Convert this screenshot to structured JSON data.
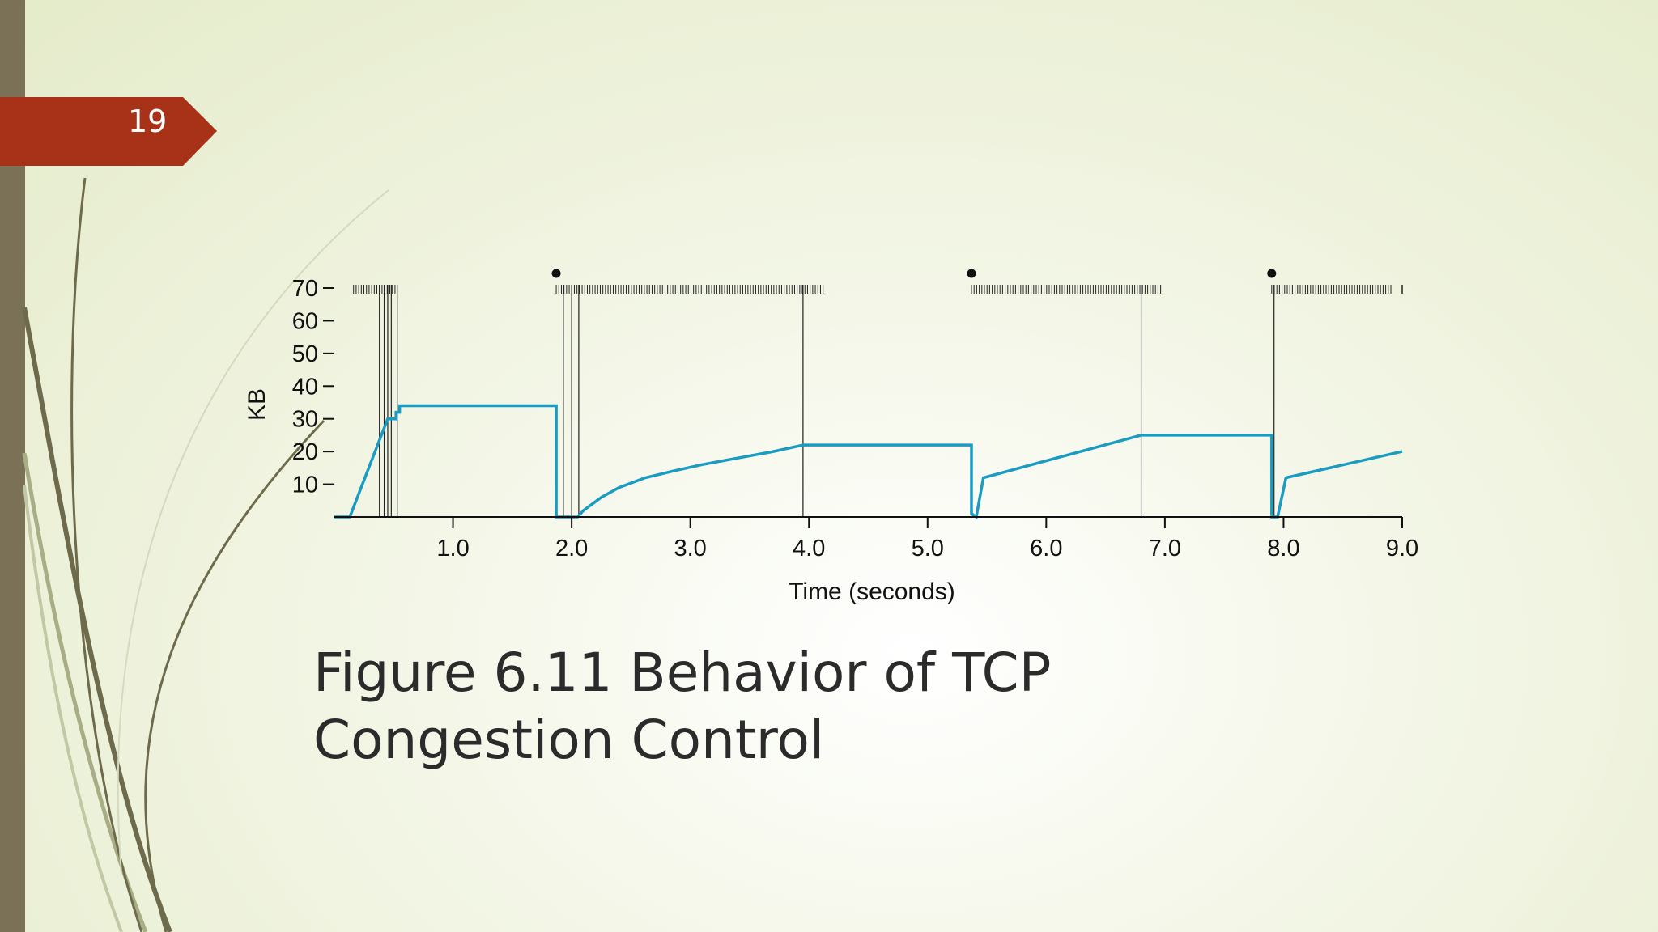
{
  "slide": {
    "number": "19",
    "caption_line1": "Figure 6.11 Behavior of TCP",
    "caption_line2": "Congestion Control",
    "accent_color": "#a83218",
    "sidebar_color": "#7a7157"
  },
  "chart_data": {
    "type": "line",
    "xlabel": "Time (seconds)",
    "ylabel": "KB",
    "xlim": [
      0,
      9.0
    ],
    "ylim": [
      0,
      70
    ],
    "x_ticks": [
      "1.0",
      "2.0",
      "3.0",
      "4.0",
      "5.0",
      "6.0",
      "7.0",
      "8.0",
      "9.0"
    ],
    "y_ticks": [
      "10",
      "20",
      "30",
      "40",
      "50",
      "60",
      "70"
    ],
    "grid": false,
    "legend": "none",
    "series": [
      {
        "color": "#1a9bc2",
        "x": [
          0,
          0.13,
          0.45,
          0.52,
          0.52,
          0.55,
          0.55,
          1.87,
          1.87,
          2.05,
          2.1,
          2.25,
          2.4,
          2.62,
          2.85,
          3.1,
          3.4,
          3.7,
          3.95,
          5.37,
          5.37,
          5.41,
          5.47,
          6.8,
          7.9,
          7.9,
          7.95,
          8.02,
          9.0
        ],
        "y": [
          0,
          0,
          30,
          30,
          32,
          32,
          34,
          34,
          0,
          0,
          2,
          6,
          9,
          12,
          14,
          16,
          18,
          20,
          22,
          22,
          1,
          0,
          12,
          25,
          25,
          0,
          0,
          12,
          20
        ]
      }
    ],
    "event_lines_x": [
      0.38,
      0.42,
      0.45,
      0.48,
      0.53,
      1.93,
      2.0,
      2.06,
      3.95,
      6.8,
      7.92
    ],
    "packet_tick_ranges": [
      {
        "start": 0.14,
        "end": 0.52
      },
      {
        "start": 1.87,
        "end": 4.14
      },
      {
        "start": 5.37,
        "end": 6.97
      },
      {
        "start": 7.9,
        "end": 8.92
      }
    ],
    "timeout_markers_x": [
      1.87,
      5.37,
      7.9
    ]
  }
}
